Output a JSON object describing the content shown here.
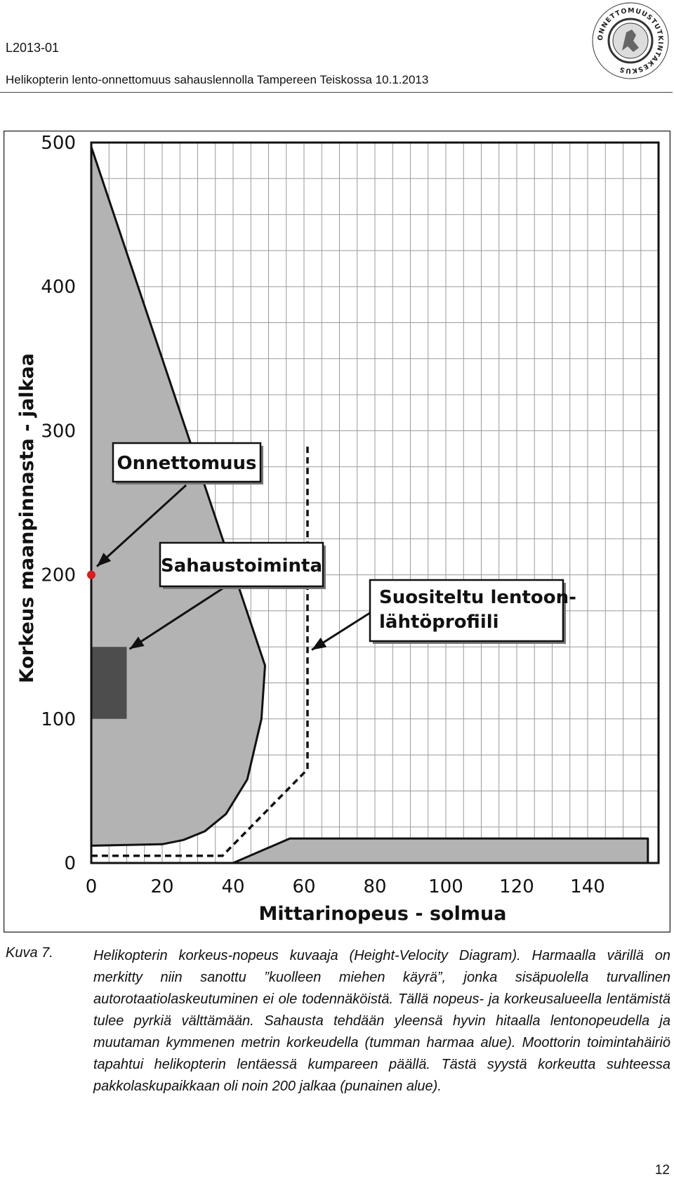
{
  "header": {
    "doc_id": "L2013-01",
    "subtitle": "Helikopterin lento-onnettomuus sahauslennolla Tampereen Teiskossa 10.1.2013",
    "seal_text": "ONNETTOMUUSTUTKINTAKESKUS"
  },
  "chart_data": {
    "type": "area",
    "title": "",
    "xlabel": "Mittarinopeus - solmua",
    "ylabel": "Korkeus maanpinnasta - jalkaa",
    "xlim": [
      0,
      160
    ],
    "ylim": [
      0,
      500
    ],
    "x_ticks": [
      "0",
      "20",
      "40",
      "60",
      "80",
      "100",
      "120",
      "140"
    ],
    "y_ticks": [
      "0",
      "100",
      "200",
      "300",
      "400",
      "500"
    ],
    "grid": true,
    "series": [
      {
        "region": "avoid_upper",
        "color": "#b3b3b3",
        "points": [
          [
            0,
            497
          ],
          [
            49,
            137
          ],
          [
            48,
            100
          ],
          [
            44,
            58
          ],
          [
            38,
            34
          ],
          [
            32,
            22
          ],
          [
            26,
            16
          ],
          [
            20,
            13
          ],
          [
            0,
            12
          ]
        ]
      },
      {
        "region": "avoid_lower",
        "color": "#b3b3b3",
        "points": [
          [
            40,
            0
          ],
          [
            56,
            17
          ],
          [
            157,
            17
          ],
          [
            157,
            0
          ]
        ]
      },
      {
        "region": "dark_area",
        "color": "#4d4d4d",
        "points": [
          [
            0,
            100
          ],
          [
            10,
            100
          ],
          [
            10,
            150
          ],
          [
            0,
            150
          ]
        ]
      },
      {
        "region": "profile",
        "style": "dashed",
        "points": [
          [
            0,
            5
          ],
          [
            37,
            5
          ],
          [
            61,
            65
          ],
          [
            61,
            290
          ]
        ]
      }
    ],
    "accident_point": {
      "x": 0,
      "y": 200,
      "color": "#e0191b"
    },
    "annotations": [
      {
        "text": "Onnettomuus",
        "x": 0,
        "y": 200
      },
      {
        "text": "Sahaustoiminta",
        "x": 10,
        "y": 150
      },
      {
        "text": "Suositeltu lentoon-",
        "text2": "lähtöprofiili",
        "x": 61,
        "y": 145
      }
    ]
  },
  "caption": {
    "label": "Kuva 7.",
    "text": "Helikopterin korkeus-nopeus kuvaaja (Height-Velocity Diagram). Harmaalla värillä on merkitty niin sanottu ”kuolleen miehen käyrä”, jonka sisäpuolella turvallinen autorotaatiolaskeutuminen ei ole todennäköistä. Tällä nopeus- ja korkeusalueella lentämistä tulee pyrkiä välttämään. Sahausta tehdään yleensä hyvin hitaalla lentonopeudella ja muutaman kymmenen metrin korkeudella (tumman harmaa alue). Moottorin toimintahäiriö tapahtui helikopterin lentäessä kumpareen päällä. Tästä syystä korkeutta suhteessa pakkolaskupaikkaan oli noin 200 jalkaa (punainen alue)."
  },
  "page_number": "12"
}
